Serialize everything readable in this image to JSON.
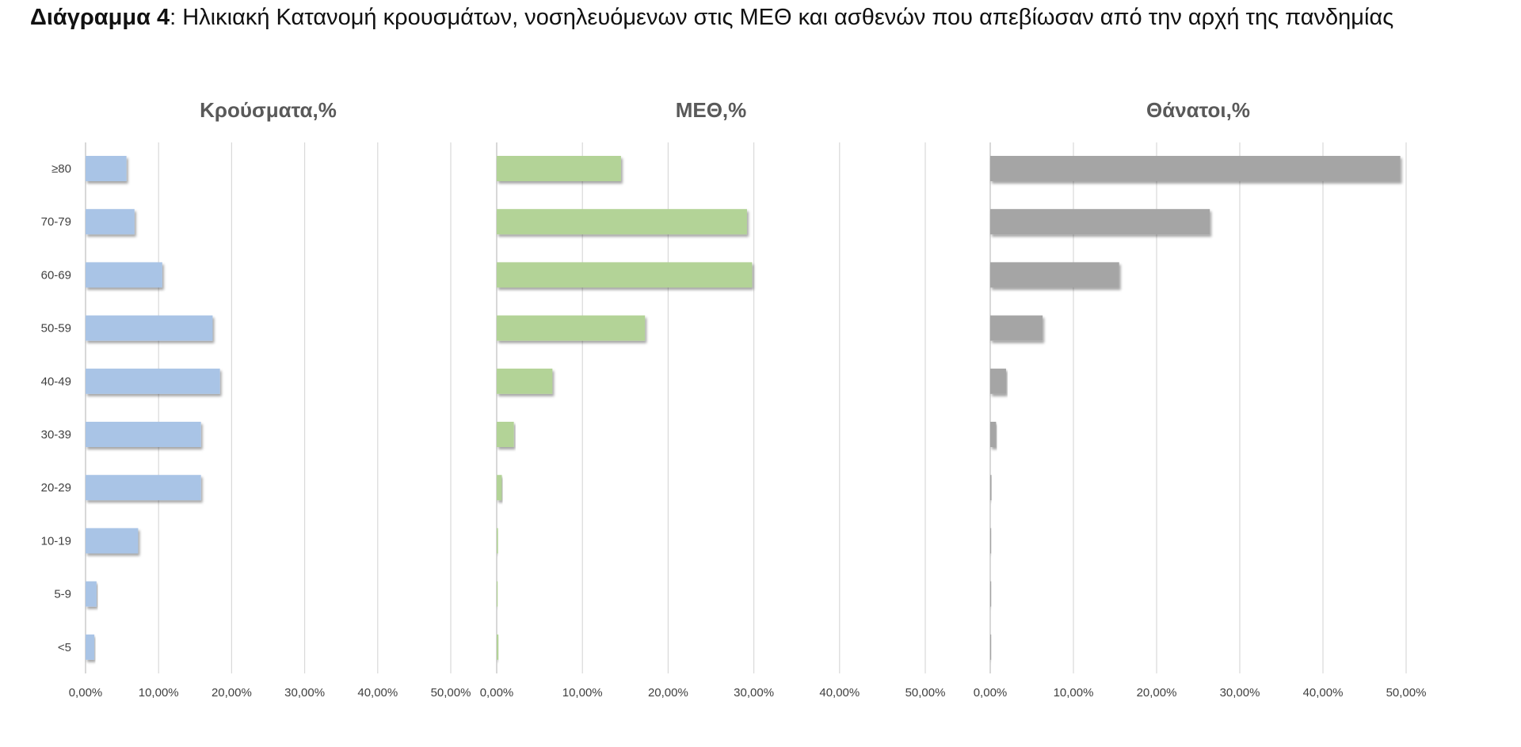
{
  "caption": {
    "bold": "Διάγραμμα 4",
    "rest": ": Ηλικιακή Κατανομή κρουσμάτων, νοσηλευόμενων στις ΜΕΘ και ασθενών που απεβίωσαν από την αρχή της πανδημίας"
  },
  "chart_data": [
    {
      "type": "bar",
      "orientation": "horizontal",
      "title": "Κρούσματα,%",
      "categories": [
        "≥80",
        "70-79",
        "60-69",
        "50-59",
        "40-49",
        "30-39",
        "20-29",
        "10-19",
        "5-9",
        "<5"
      ],
      "values": [
        5.6,
        6.7,
        10.5,
        17.4,
        18.4,
        15.8,
        15.8,
        7.2,
        1.5,
        1.2
      ],
      "xlim": [
        0,
        50
      ],
      "xticks": [
        "0,00%",
        "10,00%",
        "20,00%",
        "30,00%",
        "40,00%",
        "50,00%"
      ],
      "grid": true,
      "color": "#a9c4e6"
    },
    {
      "type": "bar",
      "orientation": "horizontal",
      "title": "ΜΕΘ,%",
      "categories": [
        "≥80",
        "70-79",
        "60-69",
        "50-59",
        "40-49",
        "30-39",
        "20-29",
        "10-19",
        "5-9",
        "<5"
      ],
      "values": [
        14.5,
        29.2,
        29.8,
        17.3,
        6.5,
        2.0,
        0.6,
        0.15,
        0.05,
        0.2
      ],
      "xlim": [
        0,
        50
      ],
      "xticks": [
        "0,00%",
        "10,00%",
        "20,00%",
        "30,00%",
        "40,00%",
        "50,00%"
      ],
      "grid": true,
      "color": "#b3d397"
    },
    {
      "type": "bar",
      "orientation": "horizontal",
      "title": "Θάνατοι,%",
      "categories": [
        "≥80",
        "70-79",
        "60-69",
        "50-59",
        "40-49",
        "30-39",
        "20-29",
        "10-19",
        "5-9",
        "<5"
      ],
      "values": [
        49.3,
        26.4,
        15.5,
        6.3,
        1.9,
        0.7,
        0.15,
        0.05,
        0.0,
        0.05
      ],
      "xlim": [
        0,
        50
      ],
      "xticks": [
        "0,00%",
        "10,00%",
        "20,00%",
        "30,00%",
        "40,00%",
        "50,00%"
      ],
      "grid": true,
      "color": "#a5a5a5"
    }
  ]
}
